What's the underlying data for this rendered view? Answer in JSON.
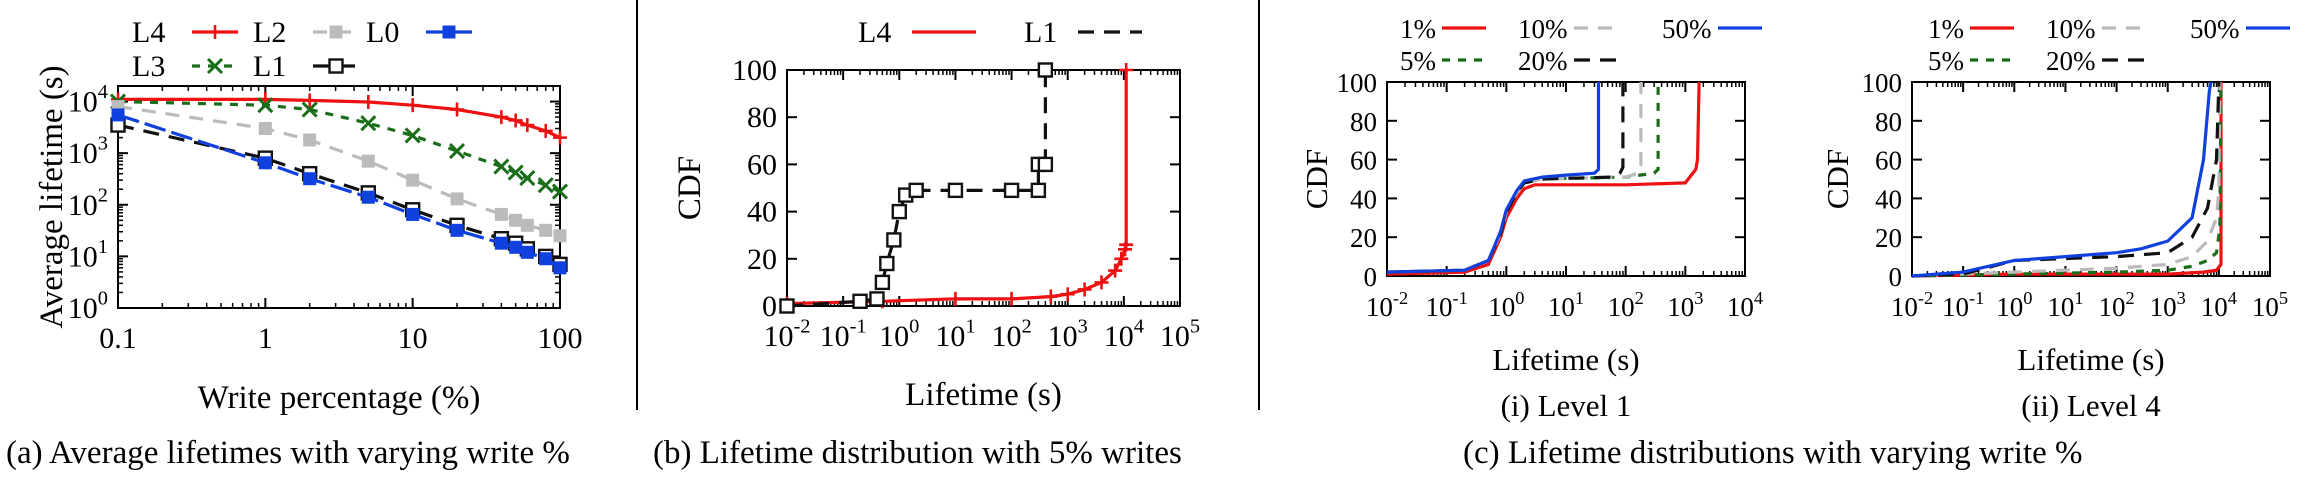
{
  "captions": {
    "a": "(a) Average lifetimes with varying write %",
    "b": "(b) Lifetime distribution with 5% writes",
    "c": "(c) Lifetime distributions with varying write %"
  },
  "styles": {
    "L4": {
      "color": "#ee1111",
      "dash": "",
      "marker": "plus"
    },
    "L3": {
      "color": "#1a6e1a",
      "dash": "8,8",
      "marker": "x"
    },
    "L2": {
      "color": "#bbbbbb",
      "dash": "14,10",
      "marker": "square-filled"
    },
    "L1": {
      "color": "#111111",
      "dash": "16,10",
      "marker": "square-open"
    },
    "L0": {
      "color": "#1040dd",
      "dash": "22,6",
      "marker": "square-filled"
    },
    "p1": {
      "color": "#ee1111",
      "dash": ""
    },
    "p5": {
      "color": "#1a6e1a",
      "dash": "8,8"
    },
    "p10": {
      "color": "#bbbbbb",
      "dash": "14,10"
    },
    "p20": {
      "color": "#111111",
      "dash": "16,10"
    },
    "p50": {
      "color": "#1040dd",
      "dash": ""
    }
  },
  "chart_data": [
    {
      "id": "a",
      "type": "line",
      "xscale": "log",
      "yscale": "log",
      "xlim": [
        0.1,
        100
      ],
      "ylim": [
        1,
        20000
      ],
      "xticks": [
        0.1,
        1,
        10,
        100
      ],
      "xticklabels": [
        "0.1",
        "1",
        "10",
        "100"
      ],
      "yticks": [
        1,
        10,
        100,
        1000,
        10000
      ],
      "yticklabels": [
        [
          "10",
          "0"
        ],
        [
          "10",
          "1"
        ],
        [
          "10",
          "2"
        ],
        [
          "10",
          "3"
        ],
        [
          "10",
          "4"
        ]
      ],
      "xlabel": "Write percentage (%)",
      "ylabel": "Average lifetime (s)",
      "legend": [
        "L4",
        "L2",
        "L0",
        "L3",
        "L1"
      ],
      "series": [
        {
          "name": "L4",
          "x": [
            0.1,
            1,
            2,
            5,
            10,
            20,
            40,
            50,
            60,
            80,
            100
          ],
          "y": [
            11000,
            11000,
            10500,
            9800,
            8500,
            7000,
            5000,
            4300,
            3500,
            2700,
            2000
          ]
        },
        {
          "name": "L3",
          "x": [
            0.1,
            1,
            2,
            5,
            10,
            20,
            40,
            50,
            60,
            80,
            100
          ],
          "y": [
            10000,
            8500,
            7000,
            3800,
            2200,
            1100,
            550,
            420,
            330,
            240,
            180
          ]
        },
        {
          "name": "L2",
          "x": [
            0.1,
            1,
            2,
            5,
            10,
            20,
            40,
            50,
            60,
            80,
            100
          ],
          "y": [
            8000,
            3000,
            1800,
            700,
            300,
            130,
            65,
            50,
            40,
            32,
            25
          ]
        },
        {
          "name": "L1",
          "x": [
            0.1,
            1,
            2,
            5,
            10,
            20,
            40,
            50,
            60,
            80,
            100
          ],
          "y": [
            3500,
            800,
            400,
            170,
            80,
            40,
            22,
            18,
            14,
            10,
            7
          ]
        },
        {
          "name": "L0",
          "x": [
            0.1,
            1,
            2,
            5,
            10,
            20,
            40,
            50,
            60,
            80,
            100
          ],
          "y": [
            5500,
            650,
            320,
            140,
            65,
            32,
            18,
            15,
            12,
            9,
            6
          ]
        }
      ]
    },
    {
      "id": "b",
      "type": "line",
      "xscale": "log",
      "xlim": [
        0.01,
        100000
      ],
      "ylim": [
        0,
        100
      ],
      "xticks": [
        0.01,
        0.1,
        1,
        10,
        100,
        1000,
        10000,
        100000
      ],
      "xticklabels": [
        [
          "10",
          "-2"
        ],
        [
          "10",
          "-1"
        ],
        [
          "10",
          "0"
        ],
        [
          "10",
          "1"
        ],
        [
          "10",
          "2"
        ],
        [
          "10",
          "3"
        ],
        [
          "10",
          "4"
        ],
        [
          "10",
          "5"
        ]
      ],
      "yticks": [
        0,
        20,
        40,
        60,
        80,
        100
      ],
      "yticklabels": [
        "0",
        "20",
        "40",
        "60",
        "80",
        "100"
      ],
      "xlabel": "Lifetime (s)",
      "ylabel": "CDF",
      "legend": [
        "L4",
        "L1"
      ],
      "series": [
        {
          "name": "L4",
          "style": "L4",
          "x": [
            0.01,
            0.5,
            10,
            100,
            500,
            1000,
            2000,
            4000,
            7000,
            9000,
            10500,
            11000,
            11000
          ],
          "y": [
            1,
            2,
            3,
            3,
            4,
            5,
            7,
            10,
            15,
            20,
            24,
            26,
            100
          ]
        },
        {
          "name": "L1",
          "style": "L1",
          "x": [
            0.01,
            0.2,
            0.4,
            0.5,
            0.6,
            0.8,
            1.0,
            1.3,
            2,
            10,
            100,
            300,
            300,
            400,
            400
          ],
          "y": [
            0,
            2,
            3,
            10,
            18,
            28,
            40,
            47,
            49,
            49,
            49,
            49,
            60,
            60,
            100
          ]
        }
      ]
    },
    {
      "id": "c1",
      "type": "line",
      "xscale": "log",
      "xlim": [
        0.01,
        10000
      ],
      "ylim": [
        0,
        100
      ],
      "xticks": [
        0.01,
        0.1,
        1,
        10,
        100,
        1000,
        10000
      ],
      "xticklabels": [
        [
          "10",
          "-2"
        ],
        [
          "10",
          "-1"
        ],
        [
          "10",
          "0"
        ],
        [
          "10",
          "1"
        ],
        [
          "10",
          "2"
        ],
        [
          "10",
          "3"
        ],
        [
          "10",
          "4"
        ]
      ],
      "yticks": [
        0,
        20,
        40,
        60,
        80,
        100
      ],
      "yticklabels": [
        "0",
        "20",
        "40",
        "60",
        "80",
        "100"
      ],
      "xlabel": "Lifetime (s)",
      "ylabel": "CDF",
      "subcaption": "(i) Level 1",
      "legend_row1": [
        {
          "name": "1%",
          "style": "p1"
        },
        {
          "name": "10%",
          "style": "p10"
        },
        {
          "name": "50%",
          "style": "p50"
        }
      ],
      "legend_row2": [
        {
          "name": "5%",
          "style": "p5"
        },
        {
          "name": "20%",
          "style": "p20"
        }
      ],
      "series": [
        {
          "name": "1%",
          "style": "p1",
          "x": [
            0.01,
            0.2,
            0.5,
            0.8,
            1.0,
            1.5,
            2,
            3,
            100,
            1000,
            1500,
            1600,
            1700
          ],
          "y": [
            1,
            2,
            6,
            20,
            30,
            40,
            45,
            47,
            47,
            48,
            55,
            60,
            100
          ]
        },
        {
          "name": "5%",
          "style": "p5",
          "x": [
            0.01,
            0.2,
            0.5,
            0.8,
            1.0,
            1.5,
            2,
            4,
            100,
            300,
            350,
            350
          ],
          "y": [
            2,
            3,
            8,
            22,
            33,
            43,
            48,
            50,
            51,
            53,
            55,
            100
          ]
        },
        {
          "name": "10%",
          "style": "p10",
          "x": [
            0.01,
            0.2,
            0.5,
            0.8,
            1.0,
            1.5,
            2,
            4,
            100,
            160,
            180,
            180
          ],
          "y": [
            2,
            3,
            8,
            22,
            33,
            43,
            48,
            50,
            51,
            53,
            56,
            100
          ]
        },
        {
          "name": "20%",
          "style": "p20",
          "x": [
            0.01,
            0.2,
            0.5,
            0.8,
            1.0,
            1.5,
            2,
            4,
            60,
            80,
            90,
            90
          ],
          "y": [
            2,
            3,
            8,
            22,
            33,
            43,
            48,
            50,
            51,
            53,
            56,
            100
          ]
        },
        {
          "name": "50%",
          "style": "p50",
          "x": [
            0.01,
            0.2,
            0.5,
            0.8,
            1.0,
            1.5,
            2,
            4,
            10,
            30,
            35,
            35
          ],
          "y": [
            2,
            3,
            8,
            23,
            34,
            44,
            49,
            51,
            52,
            53,
            55,
            100
          ]
        }
      ]
    },
    {
      "id": "c4",
      "type": "line",
      "xscale": "log",
      "xlim": [
        0.01,
        100000
      ],
      "ylim": [
        0,
        100
      ],
      "xticks": [
        0.01,
        0.1,
        1,
        10,
        100,
        1000,
        10000,
        100000
      ],
      "xticklabels": [
        [
          "10",
          "-2"
        ],
        [
          "10",
          "-1"
        ],
        [
          "10",
          "0"
        ],
        [
          "10",
          "1"
        ],
        [
          "10",
          "2"
        ],
        [
          "10",
          "3"
        ],
        [
          "10",
          "4"
        ],
        [
          "10",
          "5"
        ]
      ],
      "yticks": [
        0,
        20,
        40,
        60,
        80,
        100
      ],
      "yticklabels": [
        "0",
        "20",
        "40",
        "60",
        "80",
        "100"
      ],
      "xlabel": "Lifetime (s)",
      "ylabel": "CDF",
      "subcaption": "(ii) Level 4",
      "legend_row1": [
        {
          "name": "1%",
          "style": "p1"
        },
        {
          "name": "10%",
          "style": "p10"
        },
        {
          "name": "50%",
          "style": "p50"
        }
      ],
      "legend_row2": [
        {
          "name": "5%",
          "style": "p5"
        },
        {
          "name": "20%",
          "style": "p20"
        }
      ],
      "series": [
        {
          "name": "1%",
          "style": "p1",
          "x": [
            0.01,
            1,
            100,
            1000,
            5000,
            9000,
            11000,
            11000
          ],
          "y": [
            0,
            1,
            1,
            1,
            2,
            3,
            6,
            100
          ]
        },
        {
          "name": "5%",
          "style": "p5",
          "x": [
            0.01,
            1,
            100,
            1000,
            3000,
            6000,
            9000,
            10500,
            11000
          ],
          "y": [
            0,
            1,
            2,
            3,
            5,
            8,
            12,
            25,
            100
          ]
        },
        {
          "name": "10%",
          "style": "p10",
          "x": [
            0.01,
            1,
            100,
            1000,
            3000,
            6000,
            9000,
            10000,
            10500
          ],
          "y": [
            0,
            2,
            4,
            6,
            10,
            18,
            30,
            45,
            100
          ]
        },
        {
          "name": "20%",
          "style": "p20",
          "x": [
            0.01,
            0.1,
            1,
            10,
            100,
            1000,
            3000,
            6000,
            9000,
            10000
          ],
          "y": [
            0,
            1,
            8,
            9,
            10,
            12,
            20,
            35,
            60,
            100
          ]
        },
        {
          "name": "50%",
          "style": "p50",
          "x": [
            0.01,
            0.1,
            1,
            10,
            100,
            300,
            1000,
            3000,
            5000,
            6500,
            7000
          ],
          "y": [
            0,
            2,
            8,
            10,
            12,
            14,
            18,
            30,
            60,
            95,
            100
          ]
        }
      ]
    }
  ]
}
